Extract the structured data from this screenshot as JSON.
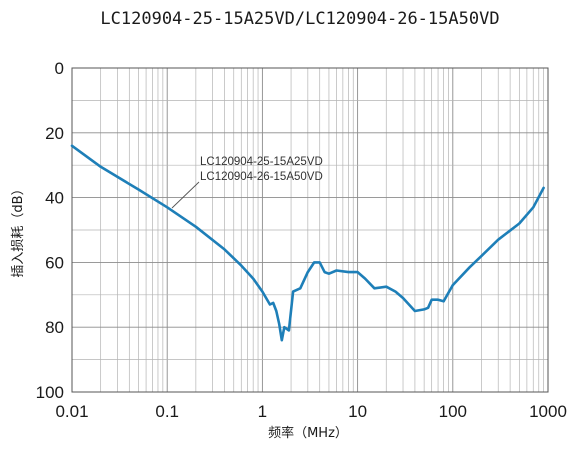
{
  "chart_data": {
    "type": "line",
    "title": "LC120904-25-15A25VD/LC120904-26-15A50VD",
    "xlabel": "频率（MHz）",
    "ylabel": "插入损耗（dB）",
    "x_scale": "log",
    "xlim": [
      0.01,
      1000
    ],
    "ylim": [
      0,
      100
    ],
    "y_inverted": true,
    "grid": true,
    "x_ticks": [
      "0.01",
      "0.1",
      "1",
      "10",
      "100",
      "1000"
    ],
    "y_ticks": [
      "0",
      "20",
      "40",
      "60",
      "80",
      "100"
    ],
    "annotation": [
      "LC120904-25-15A25VD",
      "LC120904-26-15A50VD"
    ],
    "series": [
      {
        "color": "#1e7fb8",
        "x": [
          0.01,
          0.02,
          0.05,
          0.1,
          0.2,
          0.4,
          0.6,
          0.8,
          1.0,
          1.2,
          1.3,
          1.4,
          1.5,
          1.6,
          1.7,
          1.9,
          2.1,
          2.5,
          3.0,
          3.5,
          4.0,
          4.5,
          5.0,
          6.0,
          8.0,
          10,
          12,
          15,
          20,
          25,
          30,
          40,
          50,
          55,
          60,
          70,
          80,
          100,
          150,
          200,
          300,
          500,
          700,
          900
        ],
        "y": [
          24,
          30.5,
          37.5,
          43,
          49,
          56,
          61,
          65,
          69,
          73,
          72.5,
          75,
          79,
          84,
          80,
          81,
          69,
          68,
          63,
          60,
          60,
          63,
          63.5,
          62.5,
          63,
          63,
          65,
          68,
          67.5,
          69,
          71,
          75,
          74.5,
          74,
          71.5,
          71.5,
          72,
          67,
          61.5,
          58,
          53,
          48,
          43,
          37
        ]
      }
    ]
  }
}
